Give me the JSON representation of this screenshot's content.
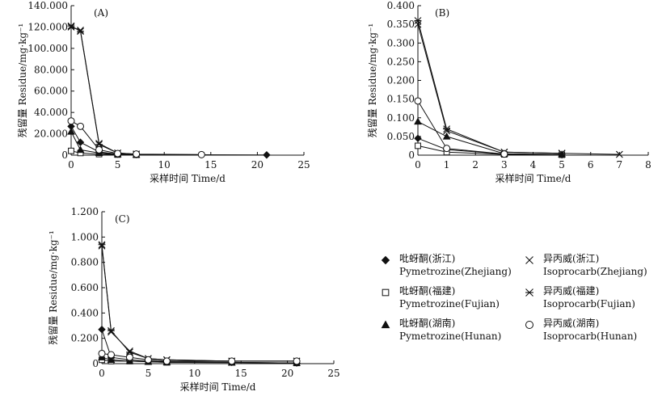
{
  "chart_data": [
    {
      "type": "line",
      "panel_label": "(A)",
      "xlabel": "采样时间 Time/d",
      "ylabel": "残留量 Residue/mg·kg⁻¹",
      "xlim": [
        0,
        25
      ],
      "ylim": [
        0,
        140
      ],
      "xticks": [
        "0",
        "5",
        "10",
        "15",
        "20",
        "25"
      ],
      "yticks": [
        "0",
        "20.000",
        "40.000",
        "60.000",
        "80.000",
        "100.000",
        "120.000",
        "140.000"
      ],
      "series": [
        {
          "key": "pz",
          "x": [
            0,
            1,
            3,
            5,
            7,
            21
          ],
          "y": [
            27,
            12,
            3,
            1,
            0.5,
            0.2
          ]
        },
        {
          "key": "pf",
          "x": [
            0,
            1,
            3,
            5,
            7
          ],
          "y": [
            4,
            2,
            1,
            0.5,
            0.3
          ]
        },
        {
          "key": "ph",
          "x": [
            0,
            1,
            3,
            5,
            7
          ],
          "y": [
            22,
            5,
            2,
            0.8,
            0.3
          ]
        },
        {
          "key": "iz",
          "x": [
            0,
            1,
            3,
            5,
            7
          ],
          "y": [
            120,
            117,
            11,
            2,
            1
          ]
        },
        {
          "key": "if",
          "x": [
            0,
            1,
            3,
            5,
            7
          ],
          "y": [
            121,
            116,
            10,
            2,
            1
          ]
        },
        {
          "key": "ih",
          "x": [
            0,
            1,
            3,
            5,
            7,
            14
          ],
          "y": [
            32,
            27,
            5,
            1.5,
            1,
            0.5
          ]
        }
      ]
    },
    {
      "type": "line",
      "panel_label": "(B)",
      "xlabel": "采样时间 Time/d",
      "ylabel": "残留量 Residue/mg·kg⁻¹",
      "xlim": [
        0,
        8
      ],
      "ylim": [
        0,
        0.4
      ],
      "xticks": [
        "0",
        "1",
        "2",
        "3",
        "4",
        "5",
        "6",
        "7",
        "8"
      ],
      "yticks": [
        "0",
        "0.050",
        "0.100",
        "0.150",
        "0.200",
        "0.250",
        "0.300",
        "0.350",
        "0.400"
      ],
      "series": [
        {
          "key": "pz",
          "x": [
            0,
            1,
            3,
            5
          ],
          "y": [
            0.045,
            0.015,
            0.003,
            0.001
          ]
        },
        {
          "key": "pf",
          "x": [
            0,
            1,
            3,
            5
          ],
          "y": [
            0.025,
            0.008,
            0.002,
            0.001
          ]
        },
        {
          "key": "ph",
          "x": [
            0,
            1,
            3,
            5
          ],
          "y": [
            0.09,
            0.05,
            0.004,
            0.002
          ]
        },
        {
          "key": "iz",
          "x": [
            0,
            1,
            3,
            5,
            7
          ],
          "y": [
            0.35,
            0.065,
            0.008,
            0.005,
            0.002
          ]
        },
        {
          "key": "if",
          "x": [
            0,
            1,
            3,
            5
          ],
          "y": [
            0.36,
            0.07,
            0.008,
            0.005
          ]
        },
        {
          "key": "ih",
          "x": [
            0,
            1,
            3
          ],
          "y": [
            0.145,
            0.018,
            0.003
          ]
        }
      ]
    },
    {
      "type": "line",
      "panel_label": "(C)",
      "xlabel": "采样时间 Time/d",
      "ylabel": "残留量 Residue/mg·kg⁻¹",
      "xlim": [
        0,
        25
      ],
      "ylim": [
        0,
        1.2
      ],
      "xticks": [
        "0",
        "5",
        "10",
        "15",
        "20",
        "25"
      ],
      "yticks": [
        "0",
        "0.200",
        "0.400",
        "0.600",
        "0.800",
        "1.000",
        "1.200"
      ],
      "series": [
        {
          "key": "pz",
          "x": [
            0,
            1,
            3,
            5,
            7,
            14,
            21
          ],
          "y": [
            0.27,
            0.05,
            0.03,
            0.02,
            0.015,
            0.01,
            0.005
          ]
        },
        {
          "key": "pf",
          "x": [
            0,
            1,
            3,
            5,
            7,
            14,
            21
          ],
          "y": [
            0.03,
            0.02,
            0.02,
            0.015,
            0.01,
            0.01,
            0.005
          ]
        },
        {
          "key": "ph",
          "x": [
            0,
            1,
            3,
            5,
            7,
            14,
            21
          ],
          "y": [
            0.05,
            0.03,
            0.02,
            0.015,
            0.01,
            0.008,
            0.005
          ]
        },
        {
          "key": "iz",
          "x": [
            0,
            1,
            3,
            5,
            7,
            14,
            21
          ],
          "y": [
            0.93,
            0.25,
            0.1,
            0.04,
            0.03,
            0.02,
            0.02
          ]
        },
        {
          "key": "if",
          "x": [
            0,
            1,
            3,
            5,
            7,
            14,
            21
          ],
          "y": [
            0.94,
            0.26,
            0.09,
            0.04,
            0.03,
            0.02,
            0.02
          ]
        },
        {
          "key": "ih",
          "x": [
            0,
            1,
            3,
            5,
            7,
            14,
            21
          ],
          "y": [
            0.08,
            0.07,
            0.05,
            0.03,
            0.02,
            0.02,
            0.02
          ]
        }
      ]
    }
  ],
  "legend": [
    {
      "key": "pz",
      "marker": "diamond-filled",
      "line1": "吡蚜酮(浙江)",
      "line2": "Pymetrozine(Zhejiang)"
    },
    {
      "key": "iz",
      "marker": "x",
      "line1": "异丙威(浙江)",
      "line2": "Isoprocarb(Zhejiang)"
    },
    {
      "key": "pf",
      "marker": "square-open",
      "line1": "吡蚜酮(福建)",
      "line2": "Pymetrozine(Fujian)"
    },
    {
      "key": "if",
      "marker": "asterisk",
      "line1": "异丙威(福建)",
      "line2": "Isoprocarb(Fujian)"
    },
    {
      "key": "ph",
      "marker": "triangle-filled",
      "line1": "吡蚜酮(湖南)",
      "line2": "Pymetrozine(Hunan)"
    },
    {
      "key": "ih",
      "marker": "circle-open",
      "line1": "异丙威(湖南)",
      "line2": "Isoprocarb(Hunan)"
    }
  ]
}
